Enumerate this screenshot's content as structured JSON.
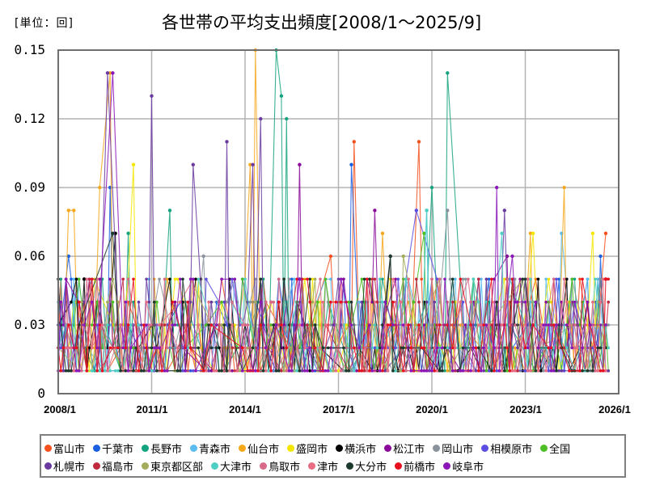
{
  "header": {
    "unit_label": "[単位：回]",
    "title": "各世帯の平均支出頻度[2008/1～2025/9]"
  },
  "axes": {
    "y_ticks": [
      "0.15",
      "0.12",
      "0.09",
      "0.06",
      "0.03",
      "0"
    ],
    "x_ticks": [
      "2008/1",
      "2011/1",
      "2014/1",
      "2017/1",
      "2020/1",
      "2023/1",
      "2026/1"
    ]
  },
  "legend": {
    "row1": [
      {
        "name": "富山市",
        "color": "#f4511e"
      },
      {
        "name": "千葉市",
        "color": "#1a5fe0"
      },
      {
        "name": "長野市",
        "color": "#14a37f"
      },
      {
        "name": "青森市",
        "color": "#5bbcf0"
      },
      {
        "name": "仙台市",
        "color": "#f5a81c"
      },
      {
        "name": "盛岡市",
        "color": "#f5e600"
      },
      {
        "name": "横浜市",
        "color": "#000000"
      },
      {
        "name": "松江市",
        "color": "#8b0a9a"
      },
      {
        "name": "岡山市",
        "color": "#8a939c"
      },
      {
        "name": "相模原市",
        "color": "#5b4ee0"
      },
      {
        "name": "全国",
        "color": "#4cbf25"
      }
    ],
    "row2": [
      {
        "name": "札幌市",
        "color": "#6a3aa0"
      },
      {
        "name": "福島市",
        "color": "#c0283e"
      },
      {
        "name": "東京都区部",
        "color": "#a4ab5a"
      },
      {
        "name": "大津市",
        "color": "#4fcfc4"
      },
      {
        "name": "鳥取市",
        "color": "#d96a88"
      },
      {
        "name": "津市",
        "color": "#e86c82"
      },
      {
        "name": "大分市",
        "color": "#1c3a2c"
      },
      {
        "name": "前橋市",
        "color": "#e8101e"
      },
      {
        "name": "岐阜市",
        "color": "#8b16b8"
      }
    ]
  },
  "chart_data": {
    "type": "line",
    "title": "各世帯の平均支出頻度[2008/1～2025/9]",
    "ylabel": "[単位：回]",
    "xlabel": "",
    "x_range": [
      "2008/1",
      "2025/9"
    ],
    "ylim": [
      0,
      0.15
    ],
    "y_ticks": [
      0,
      0.03,
      0.06,
      0.09,
      0.12,
      0.15
    ],
    "x_ticks": [
      "2008/1",
      "2011/1",
      "2014/1",
      "2017/1",
      "2020/1",
      "2023/1",
      "2026/1"
    ],
    "grid": true,
    "legend_position": "bottom",
    "n_months": 213,
    "typical_range": [
      0.01,
      0.05
    ],
    "series": [
      {
        "name": "富山市",
        "color": "#f4511e",
        "peaks": [
          [
            "2017/7",
            0.11
          ],
          [
            "2019/8",
            0.11
          ],
          [
            "2025/8",
            0.07
          ],
          [
            "2016/10",
            0.06
          ]
        ]
      },
      {
        "name": "千葉市",
        "color": "#1a5fe0",
        "peaks": [
          [
            "2017/6",
            0.1
          ],
          [
            "2008/5",
            0.06
          ],
          [
            "2009/9",
            0.09
          ],
          [
            "2025/6",
            0.06
          ]
        ]
      },
      {
        "name": "長野市",
        "color": "#14a37f",
        "peaks": [
          [
            "2015/1",
            0.15
          ],
          [
            "2015/3",
            0.13
          ],
          [
            "2015/5",
            0.12
          ],
          [
            "2020/7",
            0.14
          ],
          [
            "2020/1",
            0.09
          ],
          [
            "2011/8",
            0.08
          ],
          [
            "2010/4",
            0.07
          ]
        ]
      },
      {
        "name": "青森市",
        "color": "#5bbcf0",
        "peaks": [
          [
            "2024/3",
            0.07
          ],
          [
            "2019/11",
            0.08
          ]
        ]
      },
      {
        "name": "仙台市",
        "color": "#f5a81c",
        "peaks": [
          [
            "2014/5",
            0.15
          ],
          [
            "2009/9",
            0.14
          ],
          [
            "2014/3",
            0.1
          ],
          [
            "2008/5",
            0.08
          ],
          [
            "2008/7",
            0.08
          ],
          [
            "2024/4",
            0.09
          ],
          [
            "2009/5",
            0.09
          ],
          [
            "2018/6",
            0.07
          ],
          [
            "2023/3",
            0.07
          ]
        ]
      },
      {
        "name": "盛岡市",
        "color": "#f5e600",
        "peaks": [
          [
            "2010/6",
            0.1
          ],
          [
            "2025/3",
            0.07
          ],
          [
            "2023/4",
            0.07
          ]
        ]
      },
      {
        "name": "横浜市",
        "color": "#000000",
        "peaks": [
          [
            "2009/11",
            0.07
          ],
          [
            "2018/9",
            0.06
          ],
          [
            "2008/11",
            0.05
          ]
        ]
      },
      {
        "name": "松江市",
        "color": "#8b0a9a",
        "peaks": [
          [
            "2015/10",
            0.1
          ],
          [
            "2018/3",
            0.08
          ],
          [
            "2022/6",
            0.06
          ]
        ]
      },
      {
        "name": "岡山市",
        "color": "#8a939c",
        "peaks": [
          [
            "2020/7",
            0.08
          ],
          [
            "2012/9",
            0.06
          ]
        ]
      },
      {
        "name": "相模原市",
        "color": "#5b4ee0",
        "peaks": [
          [
            "2019/7",
            0.08
          ]
        ]
      },
      {
        "name": "全国",
        "color": "#4cbf25",
        "peaks": [
          [
            "2019/10",
            0.07
          ]
        ]
      },
      {
        "name": "札幌市",
        "color": "#6a3aa0",
        "peaks": [
          [
            "2009/8",
            0.14
          ],
          [
            "2011/1",
            0.13
          ],
          [
            "2014/7",
            0.12
          ],
          [
            "2013/6",
            0.11
          ],
          [
            "2014/4",
            0.1
          ],
          [
            "2012/5",
            0.1
          ],
          [
            "2022/5",
            0.08
          ]
        ]
      },
      {
        "name": "福島市",
        "color": "#c0283e",
        "peaks": [
          [
            "2022/6",
            0.05
          ]
        ]
      },
      {
        "name": "東京都区部",
        "color": "#a4ab5a",
        "peaks": [
          [
            "2019/2",
            0.06
          ]
        ]
      },
      {
        "name": "大津市",
        "color": "#4fcfc4",
        "peaks": [
          [
            "2022/4",
            0.07
          ],
          [
            "2019/11",
            0.08
          ]
        ]
      },
      {
        "name": "鳥取市",
        "color": "#d96a88",
        "peaks": [
          [
            "2014/11",
            0.04
          ]
        ]
      },
      {
        "name": "津市",
        "color": "#e86c82",
        "peaks": [
          [
            "2020/6",
            0.02
          ]
        ]
      },
      {
        "name": "大分市",
        "color": "#1c3a2c",
        "peaks": [
          [
            "2009/10",
            0.07
          ],
          [
            "2018/9",
            0.06
          ]
        ]
      },
      {
        "name": "前橋市",
        "color": "#e8101e",
        "peaks": [
          [
            "2025/8",
            0.05
          ]
        ]
      },
      {
        "name": "岐阜市",
        "color": "#8b16b8",
        "peaks": [
          [
            "2009/10",
            0.14
          ],
          [
            "2022/2",
            0.09
          ],
          [
            "2015/10",
            0.05
          ],
          [
            "2022/8",
            0.06
          ]
        ]
      }
    ]
  }
}
